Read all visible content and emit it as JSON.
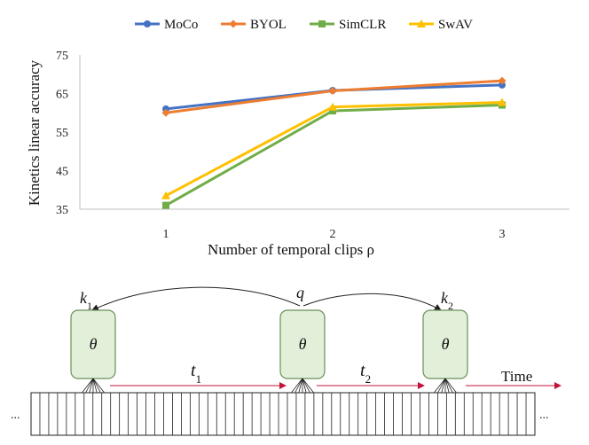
{
  "chart_data": {
    "type": "line",
    "x": [
      "1",
      "2",
      "3"
    ],
    "xlabel": "Number of temporal clips ρ",
    "ylabel": "Kinetics linear accuracy",
    "ylim": [
      35,
      75
    ],
    "yticks": [
      "35",
      "45",
      "55",
      "65",
      "75"
    ],
    "grid": false,
    "legend_position": "top",
    "series": [
      {
        "name": "MoCo",
        "values": [
          61.0,
          65.8,
          67.2
        ],
        "color": "#4472c4",
        "marker": "circle"
      },
      {
        "name": "BYOL",
        "values": [
          60.0,
          65.7,
          68.3
        ],
        "color": "#ed7d31",
        "marker": "diamond"
      },
      {
        "name": "SimCLR",
        "values": [
          36.0,
          60.5,
          62.0
        ],
        "color": "#70ad47",
        "marker": "square"
      },
      {
        "name": "SwAV",
        "values": [
          38.5,
          61.5,
          62.7
        ],
        "color": "#ffc000",
        "marker": "triangle"
      }
    ]
  },
  "diagram": {
    "clip_labels": [
      "k",
      "q",
      "k"
    ],
    "clip_subscripts": [
      "1",
      "",
      "2"
    ],
    "theta": "θ",
    "gap_labels": [
      "t",
      "t"
    ],
    "gap_subscripts": [
      "1",
      "2"
    ],
    "time_label": "Time",
    "ellipsis": "..."
  },
  "colors": {
    "encoder_fill": "#e2efd9",
    "encoder_stroke": "#6b8f5a",
    "arrow_red": "#c0143c"
  }
}
